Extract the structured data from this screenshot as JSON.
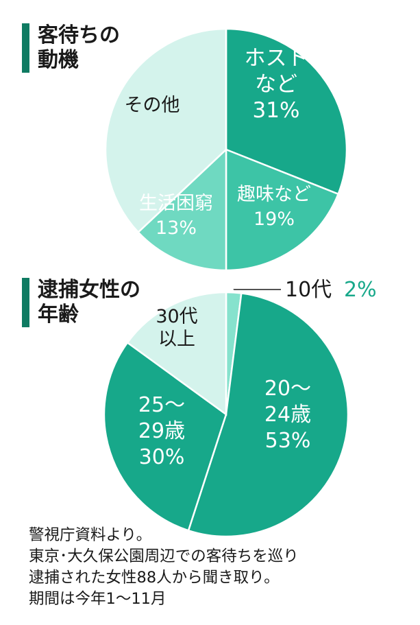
{
  "chart_data": [
    {
      "type": "pie",
      "title": "客待ちの動機",
      "title_lines": [
        "客待ちの",
        "動機"
      ],
      "slices": [
        {
          "label_lines": [
            "ホスト",
            "など"
          ],
          "value": 31,
          "value_label": "31%",
          "color": "#17a88a"
        },
        {
          "label_lines": [
            "趣味など"
          ],
          "value": 19,
          "value_label": "19%",
          "color": "#3dc4a6"
        },
        {
          "label_lines": [
            "生活困窮"
          ],
          "value": 13,
          "value_label": "13%",
          "color": "#6fd9c1"
        },
        {
          "label_lines": [
            "その他"
          ],
          "value": 37,
          "value_label": "",
          "color": "#d4f3ec"
        }
      ]
    },
    {
      "type": "pie",
      "title": "逮捕女性の年齢",
      "title_lines": [
        "逮捕女性の",
        "年齢"
      ],
      "slices": [
        {
          "label_lines": [
            "10代"
          ],
          "value": 2,
          "value_label": "2%",
          "color": "#86e2cd"
        },
        {
          "label_lines": [
            "20～",
            "24歳"
          ],
          "value": 53,
          "value_label": "53%",
          "color": "#17a88a"
        },
        {
          "label_lines": [
            "25～",
            "29歳"
          ],
          "value": 30,
          "value_label": "30%",
          "color": "#17a88a"
        },
        {
          "label_lines": [
            "30代",
            "以上"
          ],
          "value": 15,
          "value_label": "",
          "color": "#d4f3ec"
        }
      ]
    }
  ],
  "accent_color": "#0f7b62",
  "source_note": {
    "lines": [
      "警視庁資料より。",
      "東京･大久保公園周辺での客待ちを巡り",
      "逮捕された女性88人から聞き取り。",
      "期間は今年1～11月"
    ]
  }
}
